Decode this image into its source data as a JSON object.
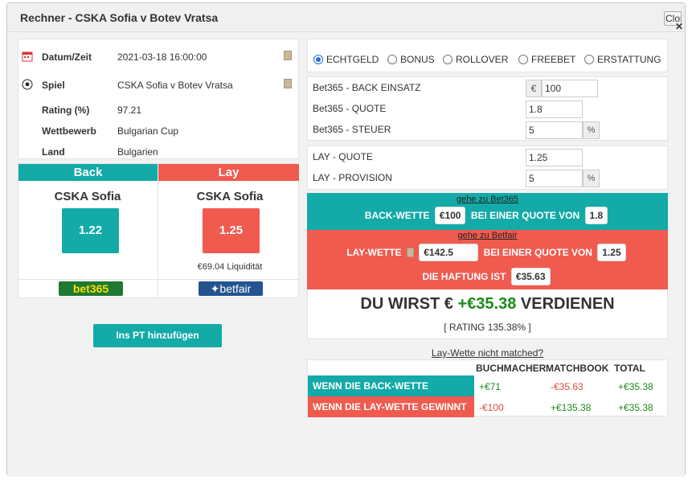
{
  "window": {
    "title": "Rechner - CSKA Sofia v Botev Vratsa",
    "close_label": "Close"
  },
  "event": {
    "rows": [
      {
        "label": "Datum/Zeit",
        "value": "2021-03-18 16:00:00"
      },
      {
        "label": "Spiel",
        "value": "CSKA Sofia v Botev Vratsa"
      },
      {
        "label": "Rating (%)",
        "value": "97.21"
      },
      {
        "label": "Wettbewerb",
        "value": "Bulgarian Cup"
      },
      {
        "label": "Land",
        "value": "Bulgarien"
      }
    ]
  },
  "back": {
    "header": "Back",
    "team": "CSKA Sofia",
    "odds": "1.22",
    "bookmaker": "bet365"
  },
  "lay": {
    "header": "Lay",
    "team": "CSKA Sofia",
    "odds": "1.25",
    "liquidity": "€69.04 Liquidität",
    "exchange": "betfair"
  },
  "add_pt_button": "Ins PT hinzufügen",
  "bet_types": [
    {
      "label": "ECHTGELD",
      "selected": true
    },
    {
      "label": "BONUS",
      "selected": false
    },
    {
      "label": "ROLLOVER",
      "selected": false
    },
    {
      "label": "FREEBET",
      "selected": false
    },
    {
      "label": "ERSTATTUNG",
      "selected": false
    }
  ],
  "back_fields": {
    "stake_label": "Bet365 - BACK EINSATZ",
    "stake_prefix": "€",
    "stake_value": "100",
    "odds_label": "Bet365 - QUOTE",
    "odds_value": "1.8",
    "tax_label": "Bet365 - STEUER",
    "tax_value": "5",
    "tax_suffix": "%"
  },
  "lay_fields": {
    "odds_label": "LAY - QUOTE",
    "odds_value": "1.25",
    "commission_label": "LAY - PROVISION",
    "commission_value": "5",
    "commission_suffix": "%"
  },
  "result": {
    "goto_bet365": "gehe zu Bet365",
    "back_bet_label": "BACK-WETTE",
    "back_amount": "€100",
    "at_odds_label": "BEI EINER QUOTE VON",
    "back_odds": "1.8",
    "goto_betfair": "gehe zu Betfair",
    "lay_bet_label": "LAY-WETTE",
    "lay_amount": "€142.5",
    "lay_odds": "1.25",
    "liability_label": "DIE HAFTUNG IST",
    "liability": "€35.63",
    "profit_prefix": "DU WIRST €",
    "profit_value": "+€35.38",
    "profit_suffix": "VERDIENEN",
    "rating": "[ RATING 135.38% ]"
  },
  "unmatched_link": "Lay-Wette nicht matched?",
  "outcome_table": {
    "headers": [
      "BUCHMACHER",
      "MATCHBOOK",
      "TOTAL"
    ],
    "rows": [
      {
        "label": "WENN DIE BACK-WETTE GEWINNT",
        "bookmaker": "+€71",
        "matchbook": "-€35.63",
        "total": "+€35.38"
      },
      {
        "label": "WENN DIE LAY-WETTE GEWINNT",
        "bookmaker": "-€100",
        "matchbook": "+€135.38",
        "total": "+€35.38"
      }
    ]
  },
  "colors": {
    "teal": "#13aaa8",
    "red": "#f05a4f",
    "green": "#1c8a1c"
  }
}
